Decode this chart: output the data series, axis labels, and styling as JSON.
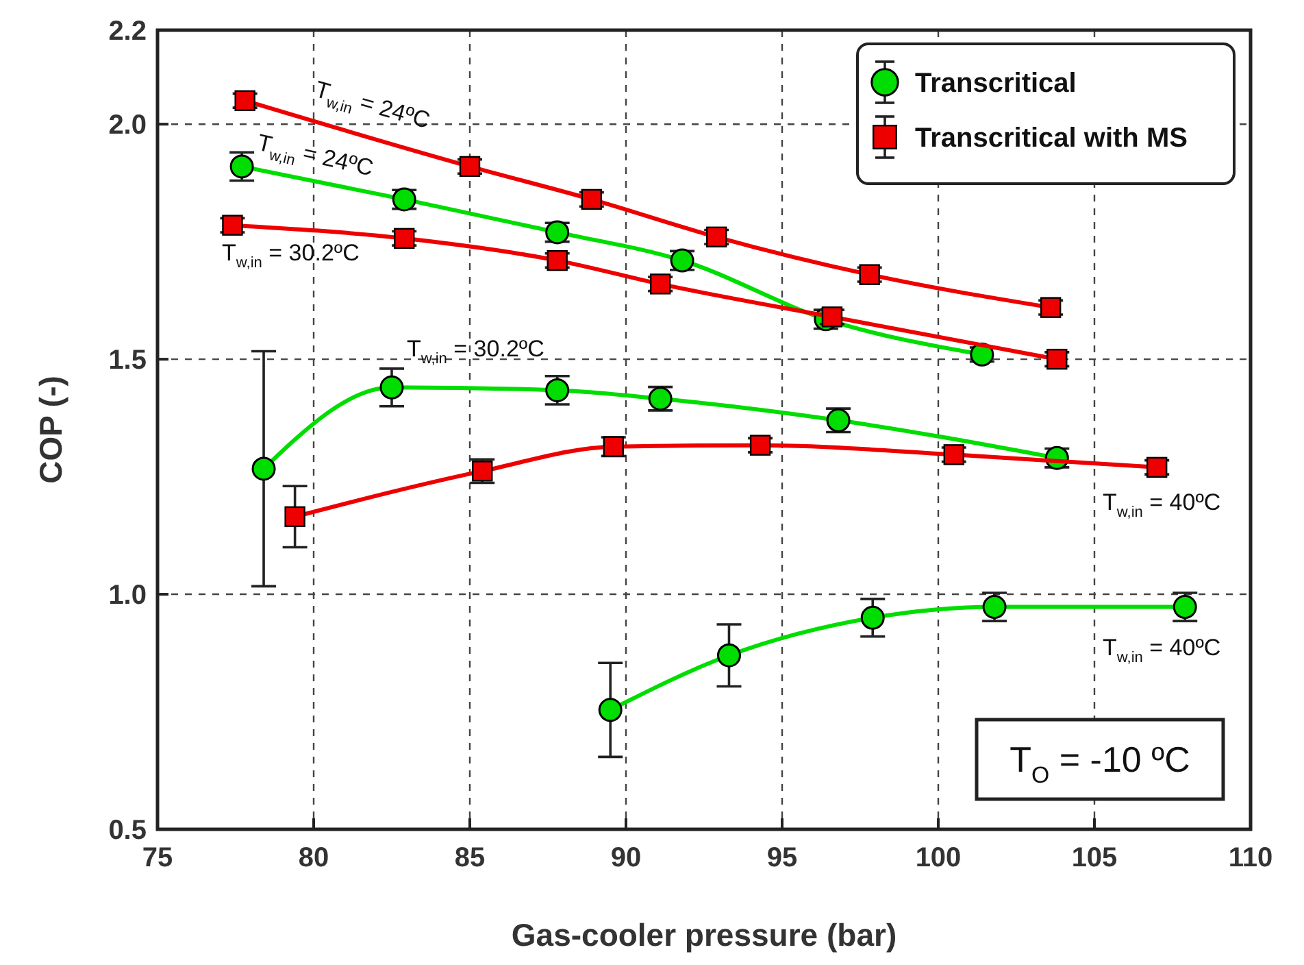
{
  "chart_data": {
    "type": "line",
    "xlabel": "Gas-cooler pressure (bar)",
    "ylabel": "COP (-)",
    "xlim": [
      75,
      110
    ],
    "xticks": [
      75,
      80,
      85,
      90,
      95,
      100,
      105,
      110
    ],
    "ylim": [
      0.5,
      2.2
    ],
    "yticks": [
      {
        "value": 0.5,
        "label": "0.5"
      },
      {
        "value": 1,
        "label": "1.0"
      },
      {
        "value": 1.5,
        "label": "1.5"
      },
      {
        "value": 2,
        "label": "2.0"
      },
      {
        "value": 2.2,
        "label": "2.2"
      }
    ],
    "grid": true,
    "legend": "top right",
    "line_style": "solid",
    "series": [
      {
        "name": "Transcritical",
        "color": "#00dd00",
        "marker": "circle",
        "x": [
          77.7,
          82.9,
          87.8,
          91.8,
          96.4,
          101.4
        ],
        "values": [
          1.91,
          1.84,
          1.77,
          1.71,
          1.585,
          1.51
        ],
        "errors": [
          0.03,
          0.02,
          0.02,
          0.02,
          0.02,
          0.015
        ]
      },
      {
        "color": "#00dd00",
        "marker": "circle",
        "x": [
          78.4,
          82.5,
          87.8,
          91.1,
          96.8,
          103.8
        ],
        "values": [
          1.267,
          1.44,
          1.434,
          1.416,
          1.37,
          1.29
        ],
        "errors": [
          0.25,
          0.04,
          0.03,
          0.025,
          0.025,
          0.02
        ]
      },
      {
        "color": "#00dd00",
        "marker": "circle",
        "x": [
          89.5,
          93.3,
          97.9,
          101.8,
          107.9
        ],
        "values": [
          0.754,
          0.87,
          0.95,
          0.973,
          0.973
        ],
        "errors": [
          0.1,
          0.066,
          0.04,
          0.03,
          0.03
        ]
      },
      {
        "name": "Transcritical with MS",
        "color": "#ee0000",
        "marker": "square",
        "x": [
          77.8,
          85.0,
          88.9,
          92.9,
          97.8,
          103.6
        ],
        "values": [
          2.05,
          1.91,
          1.84,
          1.76,
          1.68,
          1.61
        ],
        "errors": [
          0.015,
          0.015,
          0.015,
          0.015,
          0.015,
          0.015
        ]
      },
      {
        "color": "#ee0000",
        "marker": "square",
        "x": [
          77.4,
          82.9,
          87.8,
          91.1,
          96.6,
          103.8
        ],
        "values": [
          1.785,
          1.757,
          1.71,
          1.66,
          1.59,
          1.5
        ],
        "errors": [
          0.015,
          0.015,
          0.015,
          0.015,
          0.015,
          0.015
        ]
      },
      {
        "color": "#ee0000",
        "marker": "square",
        "x": [
          79.4,
          85.4,
          89.6,
          94.3,
          100.5,
          107.0
        ],
        "values": [
          1.165,
          1.262,
          1.314,
          1.317,
          1.297,
          1.27
        ],
        "errors": [
          0.065,
          0.025,
          0.02,
          0.015,
          0.015,
          0.015
        ]
      }
    ],
    "annotations": [
      "T$_{w,in}$ = 24ºC",
      "T$_{w,in}$ = 24ºC",
      "T$_{w,in}$ = 30.2ºC",
      "T$_{w,in}$ = 30.2ºC",
      "T$_{w,in}$ = 40ºC",
      "T$_{w,in}$ = 40ºC",
      "T$_{O}$ = -10 ºC"
    ]
  }
}
